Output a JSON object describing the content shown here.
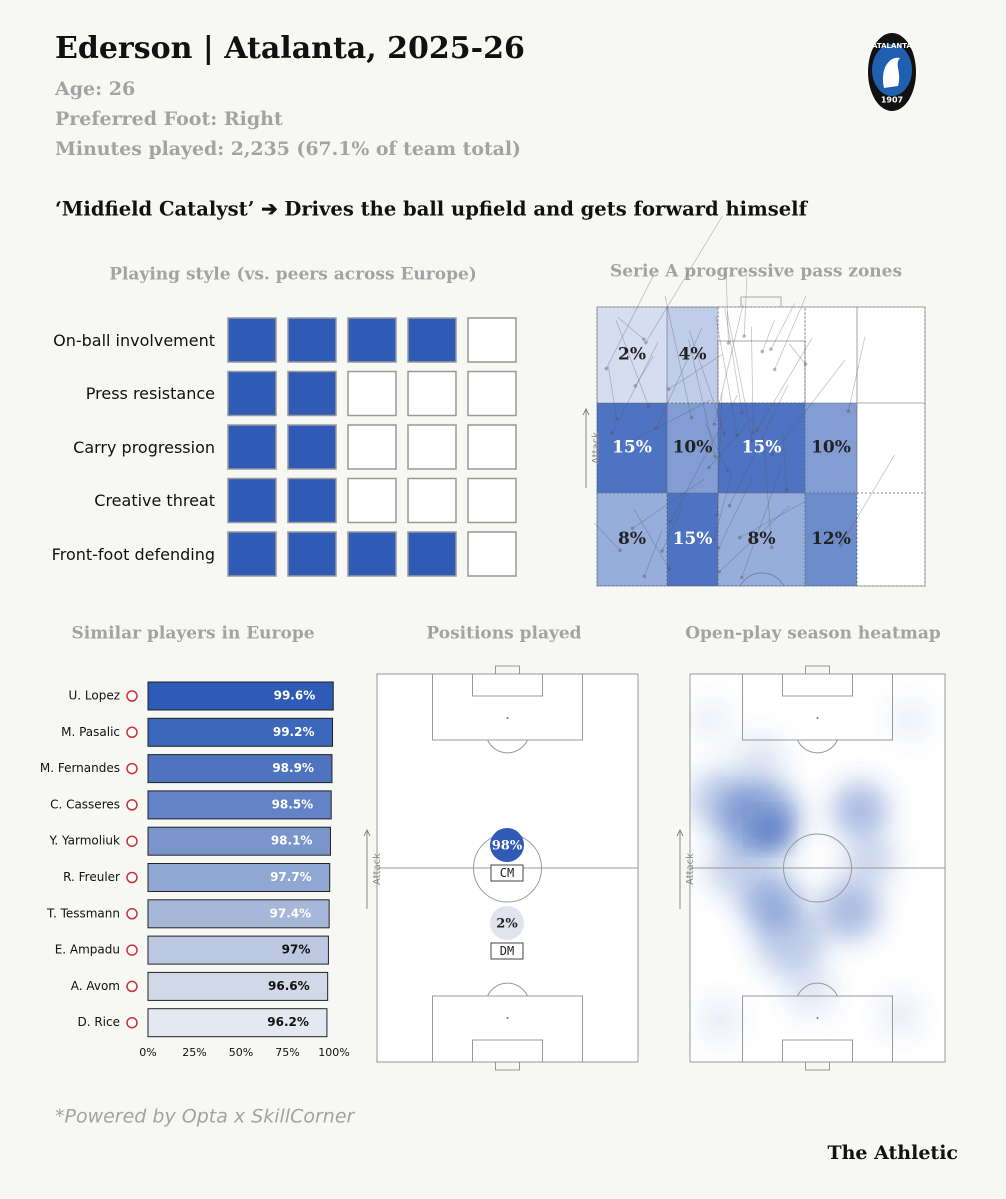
{
  "header": {
    "title": "Ederson | Atalanta, 2025-26",
    "age": "Age: 26",
    "foot": "Preferred Foot: Right",
    "minutes": "Minutes played: 2,235 (67.1% of team total)",
    "tagline": "‘Midfield Catalyst’ ➔ Drives the ball upfield and gets forward himself"
  },
  "logo": {
    "name": "ATALANTA",
    "year": "1907"
  },
  "chart_data": [
    {
      "type": "rating",
      "title": "Playing style (vs. peers across Europe)",
      "categories": [
        "On-ball involvement",
        "Press resistance",
        "Carry progression",
        "Creative threat",
        "Front-foot defending"
      ],
      "values": [
        4,
        2,
        2,
        2,
        4
      ],
      "xlim": [
        0,
        5
      ],
      "color": "#2f5bb7"
    },
    {
      "type": "zones",
      "title": "Serie A progressive pass zones",
      "direction_label": "Attack",
      "color": "#2f5bb7",
      "values": [
        [
          2,
          4,
          null,
          null,
          null
        ],
        [
          15,
          10,
          15,
          10,
          null
        ],
        [
          8,
          15,
          8,
          12,
          null
        ]
      ],
      "value_labels": [
        [
          "2%",
          "4%",
          null,
          null,
          null
        ],
        [
          "15%",
          "10%",
          "15%",
          "10%",
          null
        ],
        [
          "8%",
          "15%",
          "8%",
          "12%",
          null
        ]
      ]
    },
    {
      "type": "hbar",
      "title": "Similar players in Europe",
      "categories": [
        "U. Lopez",
        "M. Pasalic",
        "M. Fernandes",
        "C. Casseres",
        "Y. Yarmoliuk",
        "R. Freuler",
        "T. Tessmann",
        "E. Ampadu",
        "A. Avom",
        "D. Rice"
      ],
      "values": [
        99.6,
        99.2,
        98.9,
        98.5,
        98.1,
        97.7,
        97.4,
        97,
        96.6,
        96.2
      ],
      "value_labels": [
        "99.6%",
        "99.2%",
        "98.9%",
        "98.5%",
        "98.1%",
        "97.7%",
        "97.4%",
        "97%",
        "96.6%",
        "96.2%"
      ],
      "colors": [
        "#2d5bb5",
        "#3d67ba",
        "#4f74bf",
        "#6383c6",
        "#7a95cc",
        "#90a6d3",
        "#a6b7da",
        "#bcc8e1",
        "#d1d9e8",
        "#e4e8f0"
      ],
      "xlim": [
        0,
        100
      ],
      "xticks": [
        {
          "value": 0,
          "label": "0%"
        },
        {
          "value": 25,
          "label": "25%"
        },
        {
          "value": 50,
          "label": "50%"
        },
        {
          "value": 75,
          "label": "75%"
        },
        {
          "value": 100,
          "label": "100%"
        }
      ]
    },
    {
      "type": "positions",
      "title": "Positions played",
      "direction_label": "Attack",
      "color": "#2f5bb7",
      "categories": [
        "CM",
        "DM"
      ],
      "values": [
        98,
        2
      ],
      "value_labels": [
        "98%",
        "2%"
      ]
    },
    {
      "type": "heatmap",
      "title": "Open-play season heatmap",
      "direction_label": "Attack",
      "color": "#2f5bb7"
    }
  ],
  "footer": {
    "source": "*Powered by Opta x SkillCorner",
    "brand": "The Athletic"
  }
}
